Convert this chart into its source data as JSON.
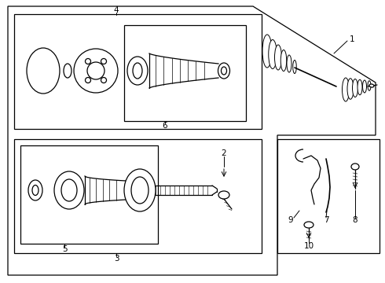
{
  "bg": "#ffffff",
  "lc": "#000000",
  "lw": 0.9,
  "fig_width": 4.9,
  "fig_height": 3.6,
  "dpi": 100
}
